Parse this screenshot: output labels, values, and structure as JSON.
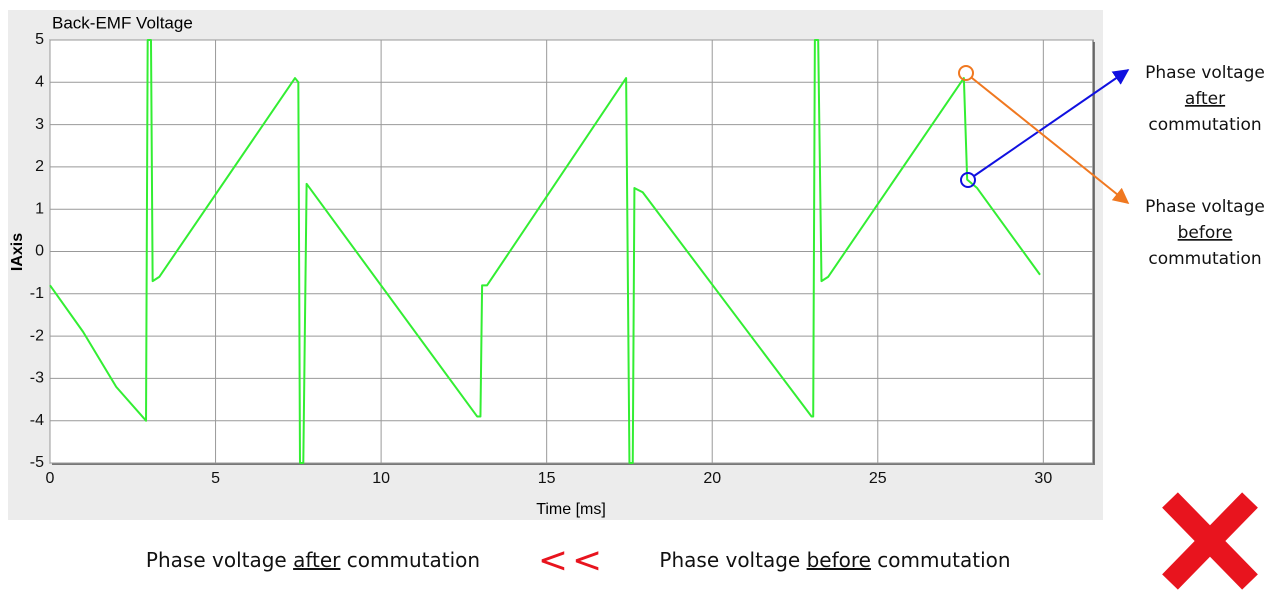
{
  "chart_data": {
    "type": "line",
    "title": "Back-EMF Voltage",
    "xlabel": "Time [ms]",
    "ylabel": "IAxis",
    "xlim": [
      0,
      31.5
    ],
    "ylim": [
      -5,
      5
    ],
    "xticks": [
      0,
      5,
      10,
      15,
      20,
      25,
      30
    ],
    "yticks": [
      -5,
      -4,
      -3,
      -2,
      -1,
      0,
      1,
      2,
      3,
      4,
      5
    ],
    "grid": true,
    "x": [
      0,
      1,
      2,
      2.9,
      2.95,
      3.05,
      3.1,
      3.3,
      7.4,
      7.5,
      7.55,
      7.65,
      7.75,
      12.9,
      13.0,
      13.05,
      13.2,
      17.4,
      17.5,
      17.6,
      17.65,
      17.9,
      23.0,
      23.05,
      23.1,
      23.2,
      23.3,
      23.5,
      27.6,
      27.7,
      28.0,
      29.9
    ],
    "series": [
      {
        "name": "Back-EMF",
        "color": "#33ee33",
        "values": [
          -0.8,
          -1.9,
          -3.2,
          -4.0,
          5,
          5,
          -0.7,
          -0.6,
          4.1,
          4.0,
          -5,
          -5,
          1.6,
          -3.9,
          -3.9,
          -0.8,
          -0.8,
          4.1,
          -5,
          -5,
          1.5,
          1.4,
          -3.9,
          -3.9,
          5,
          5,
          -0.7,
          -0.6,
          4.1,
          1.7,
          1.5,
          -0.55
        ]
      }
    ],
    "annotations": [
      {
        "lines": [
          "Phase voltage",
          "after",
          "commutation"
        ]
      },
      {
        "lines": [
          "Phase voltage",
          "before",
          "commutation"
        ]
      }
    ],
    "caption": {
      "left": [
        "Phase voltage ",
        "after",
        " commutation"
      ],
      "symbol": "<<",
      "right": [
        "Phase voltage ",
        "before",
        " commutation"
      ]
    }
  }
}
